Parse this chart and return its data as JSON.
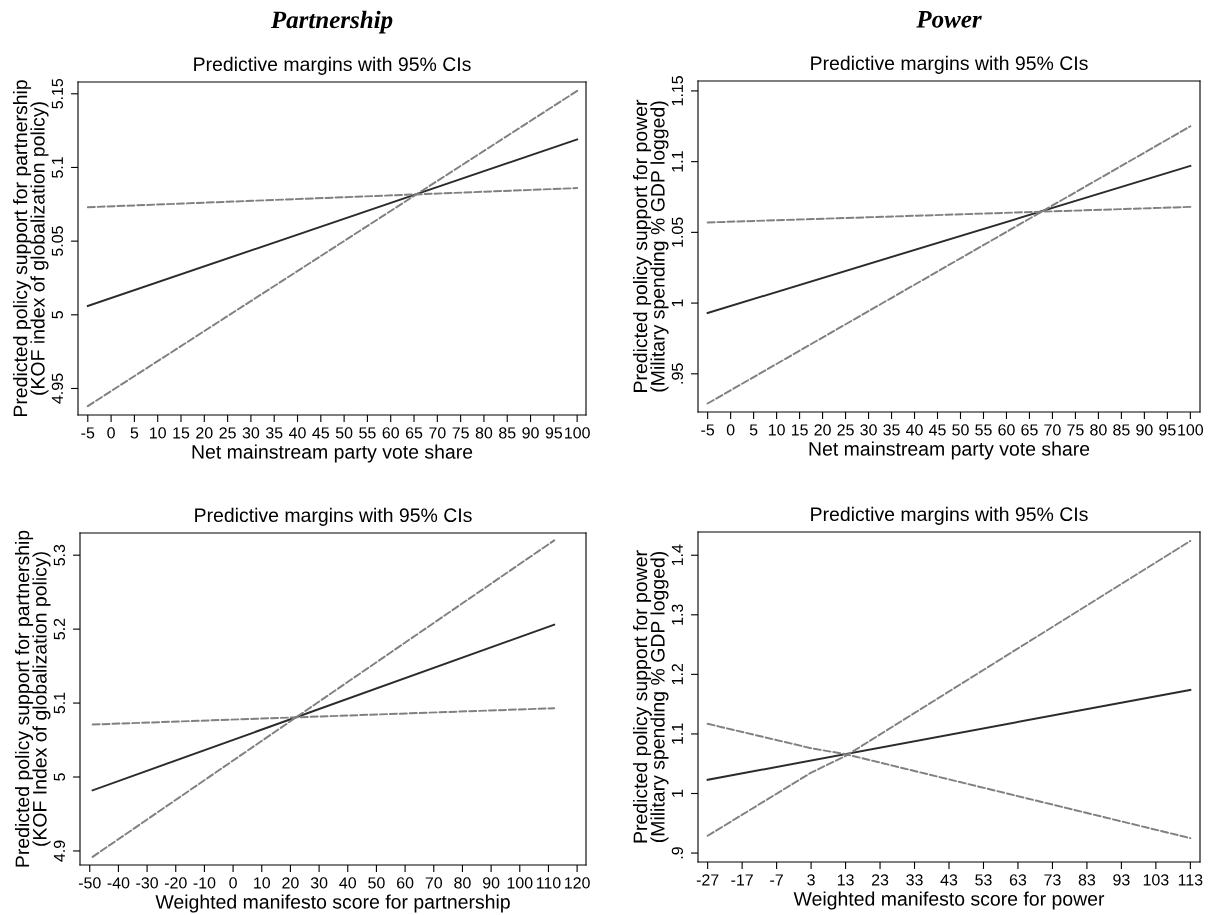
{
  "chart_data": [
    {
      "type": "line",
      "title": "Predictive margins with 95% CIs",
      "xlabel": "Net mainstream party vote share",
      "ylabel": "Predicted policy support for partnership\n(KOF index of globalization policy)",
      "annotations": [
        "Partnership"
      ],
      "xlim": [
        -7.1,
        101.9
      ],
      "xticks": [
        -5,
        0,
        5,
        10,
        15,
        20,
        25,
        30,
        35,
        40,
        45,
        50,
        55,
        60,
        65,
        70,
        75,
        80,
        85,
        90,
        95,
        100
      ],
      "ylim": [
        4.932,
        5.158
      ],
      "yticks": [
        4.95,
        5,
        5.05,
        5.1,
        5.15
      ],
      "grid": false,
      "legend": false,
      "marker": "none",
      "series": [
        {
          "color": "#2b2b2b",
          "line_style": "solid",
          "x": [
            -5,
            100
          ],
          "values": [
            5.006,
            5.119
          ]
        },
        {
          "color": "#808080",
          "line_style": "dashed",
          "x": [
            -5,
            100
          ],
          "values": [
            5.073,
            5.086
          ]
        },
        {
          "color": "#808080",
          "line_style": "dashed",
          "x": [
            -5,
            100
          ],
          "values": [
            4.938,
            5.152
          ]
        }
      ]
    },
    {
      "type": "line",
      "title": "Predictive margins with 95% CIs",
      "xlabel": "Net mainstream party vote share",
      "ylabel": "Predicted policy support for power\n(Military spending % GDP logged)",
      "annotations": [
        "Power"
      ],
      "xlim": [
        -7.1,
        102.1
      ],
      "xticks": [
        -5,
        0,
        5,
        10,
        15,
        20,
        25,
        30,
        35,
        40,
        45,
        50,
        55,
        60,
        65,
        70,
        75,
        80,
        85,
        90,
        95,
        100
      ],
      "ylim": [
        0.923,
        1.157
      ],
      "yticks": [
        {
          "value": 0.95,
          "label": ".95"
        },
        1,
        1.05,
        1.1,
        1.15
      ],
      "grid": false,
      "legend": false,
      "marker": "none",
      "series": [
        {
          "color": "#2b2b2b",
          "line_style": "solid",
          "x": [
            -5,
            100
          ],
          "values": [
            0.993,
            1.097
          ]
        },
        {
          "color": "#808080",
          "line_style": "dashed",
          "x": [
            -5,
            100
          ],
          "values": [
            1.057,
            1.068
          ]
        },
        {
          "color": "#808080",
          "line_style": "dashed",
          "x": [
            -5,
            100
          ],
          "values": [
            0.929,
            1.125
          ]
        }
      ]
    },
    {
      "type": "line",
      "title": "Predictive margins with 95% CIs",
      "xlabel": "Weighted manifesto score for partnership",
      "ylabel": "Predicted policy support for partnership\n(KOF Index of globalization policy)",
      "xlim": [
        -53.4,
        123.1
      ],
      "xticks": [
        -50,
        -40,
        -30,
        -20,
        -10,
        0,
        10,
        20,
        30,
        40,
        50,
        60,
        70,
        80,
        90,
        100,
        110,
        120
      ],
      "ylim": [
        4.881,
        5.33
      ],
      "yticks": [
        4.9,
        5,
        5.1,
        5.2,
        5.3
      ],
      "grid": false,
      "legend": false,
      "marker": "none",
      "series": [
        {
          "color": "#2b2b2b",
          "line_style": "solid",
          "x": [
            -49,
            112
          ],
          "values": [
            4.982,
            5.206
          ]
        },
        {
          "color": "#808080",
          "line_style": "dashed",
          "x": [
            -49,
            112
          ],
          "values": [
            5.071,
            5.093
          ]
        },
        {
          "color": "#808080",
          "line_style": "dashed",
          "x": [
            -49,
            112
          ],
          "values": [
            4.892,
            5.32
          ]
        }
      ]
    },
    {
      "type": "line",
      "title": "Predictive margins with 95% CIs",
      "xlabel": "Weighted manifesto score for power",
      "ylabel": "Predicted policy support for power\n(Military spending % GDP logged)",
      "xlim": [
        -29.8,
        115.8
      ],
      "xticks": [
        -27,
        -17,
        -7,
        3,
        13,
        23,
        33,
        43,
        53,
        63,
        73,
        83,
        93,
        103,
        113
      ],
      "ylim": [
        0.885,
        1.439
      ],
      "yticks": [
        {
          "value": 0.9,
          "label": ".9"
        },
        1,
        1.1,
        1.2,
        1.3,
        1.4
      ],
      "grid": false,
      "legend": false,
      "marker": "none",
      "series": [
        {
          "color": "#2b2b2b",
          "line_style": "solid",
          "x": [
            -27,
            113
          ],
          "values": [
            1.023,
            1.174
          ]
        },
        {
          "color": "#808080",
          "line_style": "dashed",
          "x": [
            -27,
            3,
            13,
            113
          ],
          "values": [
            1.117,
            1.076,
            1.066,
            0.925
          ]
        },
        {
          "color": "#808080",
          "line_style": "dashed",
          "x": [
            -27,
            3,
            13,
            113
          ],
          "values": [
            0.929,
            1.035,
            1.063,
            1.424
          ]
        }
      ]
    }
  ]
}
